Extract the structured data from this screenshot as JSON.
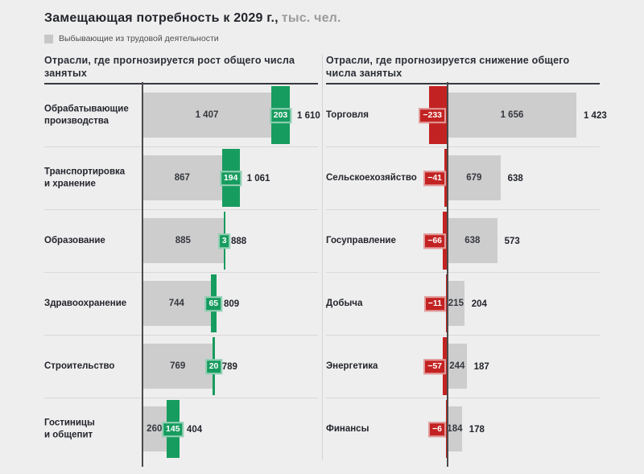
{
  "page": {
    "title": "Замещающая потребность к 2029 г.,",
    "title_unit": "тыс. чел.",
    "legend_label": "Выбывающие из трудовой деятельности"
  },
  "colors": {
    "background": "#eeeeee",
    "bar_gray": "#cdcdcd",
    "positive_green": "#179c5f",
    "negative_red": "#c22322",
    "axis_dark": "#4a4a4a"
  },
  "chart_data": [
    {
      "type": "bar",
      "orientation": "horizontal",
      "title": "Отрасли, где прогнозируется рост общего числа занятых",
      "unit": "тыс. чел.",
      "legend": "Выбывающие из трудовой деятельности",
      "categories": [
        "Обрабатывающие производства",
        "Транспортировка и хранение",
        "Образование",
        "Здравоохранение",
        "Строительство",
        "Гостиницы и общепит"
      ],
      "series": [
        {
          "name": "Выбывающие из трудовой деятельности",
          "values": [
            1407,
            867,
            885,
            744,
            769,
            260
          ]
        },
        {
          "name": "",
          "values": [
            203,
            194,
            3,
            65,
            20,
            145
          ]
        }
      ],
      "totals": [
        1610,
        1061,
        888,
        809,
        789,
        404
      ],
      "rows": [
        {
          "label": "Обрабатывающие\nпроизводства",
          "base": 1407,
          "base_display": "1 407",
          "delta": 203,
          "delta_display": "203",
          "total": 1610,
          "total_display": "1 610"
        },
        {
          "label": "Транспортировка\nи хранение",
          "base": 867,
          "base_display": "867",
          "delta": 194,
          "delta_display": "194",
          "total": 1061,
          "total_display": "1 061"
        },
        {
          "label": "Образование",
          "base": 885,
          "base_display": "885",
          "delta": 3,
          "delta_display": "3",
          "total": 888,
          "total_display": "888"
        },
        {
          "label": "Здравоохранение",
          "base": 744,
          "base_display": "744",
          "delta": 65,
          "delta_display": "65",
          "total": 809,
          "total_display": "809"
        },
        {
          "label": "Строительство",
          "base": 769,
          "base_display": "769",
          "delta": 20,
          "delta_display": "20",
          "total": 789,
          "total_display": "789"
        },
        {
          "label": "Гостиницы\nи общепит",
          "base": 260,
          "base_display": "260",
          "delta": 145,
          "delta_display": "145",
          "total": 404,
          "total_display": "404"
        }
      ]
    },
    {
      "type": "bar",
      "orientation": "horizontal",
      "title": "Отрасли, где прогнозируется снижение общего числа занятых",
      "unit": "тыс. чел.",
      "legend": "Выбывающие из трудовой деятельности",
      "categories": [
        "Торговля",
        "Сельскоехозяйство",
        "Госуправление",
        "Добыча",
        "Энергетика",
        "Финансы"
      ],
      "series": [
        {
          "name": "Выбывающие из трудовой деятельности",
          "values": [
            1656,
            679,
            638,
            215,
            244,
            184
          ]
        },
        {
          "name": "",
          "values": [
            -233,
            -41,
            -66,
            -11,
            -57,
            -6
          ]
        }
      ],
      "totals": [
        1423,
        638,
        573,
        204,
        187,
        178
      ],
      "rows": [
        {
          "label": "Торговля",
          "base": 1656,
          "base_display": "1 656",
          "delta": -233,
          "delta_display": "−233",
          "total": 1423,
          "total_display": "1 423"
        },
        {
          "label": "Сельскоехозяйство",
          "base": 679,
          "base_display": "679",
          "delta": -41,
          "delta_display": "−41",
          "total": 638,
          "total_display": "638"
        },
        {
          "label": "Госуправление",
          "base": 638,
          "base_display": "638",
          "delta": -66,
          "delta_display": "−66",
          "total": 573,
          "total_display": "573"
        },
        {
          "label": "Добыча",
          "base": 215,
          "base_display": "215",
          "delta": -11,
          "delta_display": "−11",
          "total": 204,
          "total_display": "204"
        },
        {
          "label": "Энергетика",
          "base": 244,
          "base_display": "244",
          "delta": -57,
          "delta_display": "−57",
          "total": 187,
          "total_display": "187"
        },
        {
          "label": "Финансы",
          "base": 184,
          "base_display": "184",
          "delta": -6,
          "delta_display": "−6",
          "total": 178,
          "total_display": "178"
        }
      ]
    }
  ]
}
